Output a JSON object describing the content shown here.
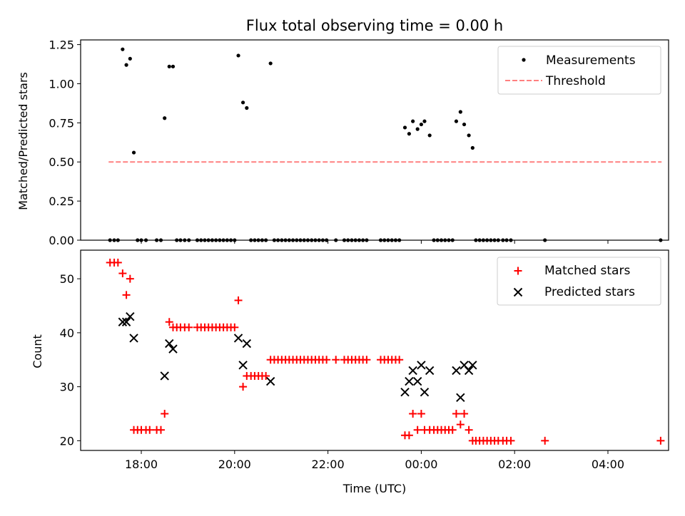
{
  "colors": {
    "matched": "#ff0000",
    "predicted": "#000000",
    "threshold": "#ff8080",
    "measurement": "#000000"
  },
  "chart_data": [
    {
      "type": "scatter",
      "title": "Flux total observing time = 0.00 h",
      "xlabel": "",
      "ylabel": "Matched/Predicted stars",
      "xlim": [
        16.7,
        29.3
      ],
      "ylim": [
        0,
        1.28
      ],
      "x_ticks": [
        18,
        20,
        22,
        24,
        26,
        28
      ],
      "x_tick_labels": [
        "18:00",
        "20:00",
        "22:00",
        "00:00",
        "02:00",
        "04:00"
      ],
      "y_ticks": [
        0,
        0.25,
        0.5,
        0.75,
        1.0,
        1.25
      ],
      "y_tick_labels": [
        "0.00",
        "0.25",
        "0.50",
        "0.75",
        "1.00",
        "1.25"
      ],
      "legend_position": "top-right",
      "series": [
        {
          "name": "Measurements",
          "marker": "dot",
          "points": [
            [
              17.6,
              1.22
            ],
            [
              17.68,
              1.12
            ],
            [
              17.76,
              1.16
            ],
            [
              17.84,
              0.56
            ],
            [
              18.5,
              0.78
            ],
            [
              18.6,
              1.11
            ],
            [
              18.68,
              1.11
            ],
            [
              20.08,
              1.18
            ],
            [
              20.18,
              0.88
            ],
            [
              20.26,
              0.845
            ],
            [
              20.77,
              1.13
            ],
            [
              23.65,
              0.72
            ],
            [
              23.74,
              0.68
            ],
            [
              23.82,
              0.76
            ],
            [
              23.92,
              0.71
            ],
            [
              24.0,
              0.74
            ],
            [
              24.07,
              0.76
            ],
            [
              24.18,
              0.67
            ],
            [
              24.75,
              0.76
            ],
            [
              24.84,
              0.82
            ],
            [
              24.92,
              0.74
            ],
            [
              25.02,
              0.67
            ],
            [
              25.1,
              0.59
            ],
            [
              17.33,
              0
            ],
            [
              17.42,
              0
            ],
            [
              17.5,
              0
            ],
            [
              17.92,
              0
            ],
            [
              18.0,
              0
            ],
            [
              18.1,
              0
            ],
            [
              18.33,
              0
            ],
            [
              18.42,
              0
            ],
            [
              18.76,
              0
            ],
            [
              18.84,
              0
            ],
            [
              18.93,
              0
            ],
            [
              19.02,
              0
            ],
            [
              19.2,
              0
            ],
            [
              19.28,
              0
            ],
            [
              19.36,
              0
            ],
            [
              19.44,
              0
            ],
            [
              19.52,
              0
            ],
            [
              19.6,
              0
            ],
            [
              19.68,
              0
            ],
            [
              19.76,
              0
            ],
            [
              19.84,
              0
            ],
            [
              19.92,
              0
            ],
            [
              20.0,
              0
            ],
            [
              20.35,
              0
            ],
            [
              20.43,
              0
            ],
            [
              20.51,
              0
            ],
            [
              20.59,
              0
            ],
            [
              20.67,
              0
            ],
            [
              20.85,
              0
            ],
            [
              20.93,
              0
            ],
            [
              21.01,
              0
            ],
            [
              21.09,
              0
            ],
            [
              21.17,
              0
            ],
            [
              21.25,
              0
            ],
            [
              21.33,
              0
            ],
            [
              21.41,
              0
            ],
            [
              21.49,
              0
            ],
            [
              21.57,
              0
            ],
            [
              21.65,
              0
            ],
            [
              21.73,
              0
            ],
            [
              21.81,
              0
            ],
            [
              21.89,
              0
            ],
            [
              21.97,
              0
            ],
            [
              22.17,
              0
            ],
            [
              22.35,
              0
            ],
            [
              22.43,
              0
            ],
            [
              22.51,
              0
            ],
            [
              22.59,
              0
            ],
            [
              22.67,
              0
            ],
            [
              22.75,
              0
            ],
            [
              22.83,
              0
            ],
            [
              23.13,
              0
            ],
            [
              23.21,
              0
            ],
            [
              23.29,
              0
            ],
            [
              23.37,
              0
            ],
            [
              23.45,
              0
            ],
            [
              23.53,
              0
            ],
            [
              24.27,
              0
            ],
            [
              24.35,
              0
            ],
            [
              24.43,
              0
            ],
            [
              24.51,
              0
            ],
            [
              24.59,
              0
            ],
            [
              24.67,
              0
            ],
            [
              25.17,
              0
            ],
            [
              25.25,
              0
            ],
            [
              25.33,
              0
            ],
            [
              25.41,
              0
            ],
            [
              25.49,
              0
            ],
            [
              25.57,
              0
            ],
            [
              25.65,
              0
            ],
            [
              25.75,
              0
            ],
            [
              25.83,
              0
            ],
            [
              25.92,
              0
            ],
            [
              26.65,
              0
            ],
            [
              29.13,
              0
            ]
          ]
        },
        {
          "name": "Threshold",
          "marker": "dashed-line",
          "points": [
            [
              17.3,
              0.5
            ],
            [
              29.15,
              0.5
            ]
          ]
        }
      ]
    },
    {
      "type": "scatter",
      "title": "",
      "xlabel": "Time (UTC)",
      "ylabel": "Count",
      "xlim": [
        16.7,
        29.3
      ],
      "ylim": [
        18.2,
        55.3
      ],
      "x_ticks": [
        18,
        20,
        22,
        24,
        26,
        28
      ],
      "x_tick_labels": [
        "18:00",
        "20:00",
        "22:00",
        "00:00",
        "02:00",
        "04:00"
      ],
      "y_ticks": [
        20,
        30,
        40,
        50
      ],
      "y_tick_labels": [
        "20",
        "30",
        "40",
        "50"
      ],
      "legend_position": "top-right",
      "series": [
        {
          "name": "Matched stars",
          "marker": "plus",
          "points": [
            [
              17.33,
              53
            ],
            [
              17.42,
              53
            ],
            [
              17.5,
              53
            ],
            [
              17.6,
              51
            ],
            [
              17.68,
              47
            ],
            [
              17.76,
              50
            ],
            [
              17.84,
              22
            ],
            [
              17.92,
              22
            ],
            [
              18.0,
              22
            ],
            [
              18.1,
              22
            ],
            [
              18.18,
              22
            ],
            [
              18.33,
              22
            ],
            [
              18.42,
              22
            ],
            [
              18.5,
              25
            ],
            [
              18.6,
              42
            ],
            [
              18.68,
              41
            ],
            [
              18.76,
              41
            ],
            [
              18.84,
              41
            ],
            [
              18.93,
              41
            ],
            [
              19.02,
              41
            ],
            [
              19.2,
              41
            ],
            [
              19.28,
              41
            ],
            [
              19.36,
              41
            ],
            [
              19.44,
              41
            ],
            [
              19.52,
              41
            ],
            [
              19.6,
              41
            ],
            [
              19.68,
              41
            ],
            [
              19.76,
              41
            ],
            [
              19.84,
              41
            ],
            [
              19.92,
              41
            ],
            [
              20.0,
              41
            ],
            [
              20.08,
              46
            ],
            [
              20.18,
              30
            ],
            [
              20.26,
              32
            ],
            [
              20.35,
              32
            ],
            [
              20.43,
              32
            ],
            [
              20.51,
              32
            ],
            [
              20.59,
              32
            ],
            [
              20.67,
              32
            ],
            [
              20.77,
              35
            ],
            [
              20.85,
              35
            ],
            [
              20.93,
              35
            ],
            [
              21.01,
              35
            ],
            [
              21.09,
              35
            ],
            [
              21.17,
              35
            ],
            [
              21.25,
              35
            ],
            [
              21.33,
              35
            ],
            [
              21.41,
              35
            ],
            [
              21.49,
              35
            ],
            [
              21.57,
              35
            ],
            [
              21.65,
              35
            ],
            [
              21.73,
              35
            ],
            [
              21.81,
              35
            ],
            [
              21.89,
              35
            ],
            [
              21.97,
              35
            ],
            [
              22.17,
              35
            ],
            [
              22.35,
              35
            ],
            [
              22.43,
              35
            ],
            [
              22.51,
              35
            ],
            [
              22.59,
              35
            ],
            [
              22.67,
              35
            ],
            [
              22.75,
              35
            ],
            [
              22.83,
              35
            ],
            [
              23.13,
              35
            ],
            [
              23.21,
              35
            ],
            [
              23.29,
              35
            ],
            [
              23.37,
              35
            ],
            [
              23.45,
              35
            ],
            [
              23.53,
              35
            ],
            [
              23.65,
              21
            ],
            [
              23.74,
              21
            ],
            [
              23.82,
              25
            ],
            [
              23.92,
              22
            ],
            [
              24.0,
              25
            ],
            [
              24.07,
              22
            ],
            [
              24.18,
              22
            ],
            [
              24.27,
              22
            ],
            [
              24.35,
              22
            ],
            [
              24.43,
              22
            ],
            [
              24.51,
              22
            ],
            [
              24.59,
              22
            ],
            [
              24.67,
              22
            ],
            [
              24.75,
              25
            ],
            [
              24.84,
              23
            ],
            [
              24.92,
              25
            ],
            [
              25.02,
              22
            ],
            [
              25.1,
              20
            ],
            [
              25.17,
              20
            ],
            [
              25.25,
              20
            ],
            [
              25.33,
              20
            ],
            [
              25.41,
              20
            ],
            [
              25.49,
              20
            ],
            [
              25.57,
              20
            ],
            [
              25.65,
              20
            ],
            [
              25.75,
              20
            ],
            [
              25.83,
              20
            ],
            [
              25.92,
              20
            ],
            [
              26.65,
              20
            ],
            [
              29.13,
              20
            ]
          ]
        },
        {
          "name": "Predicted stars",
          "marker": "x",
          "points": [
            [
              17.6,
              42
            ],
            [
              17.68,
              42
            ],
            [
              17.76,
              43
            ],
            [
              17.84,
              39
            ],
            [
              18.5,
              32
            ],
            [
              18.6,
              38
            ],
            [
              18.68,
              37
            ],
            [
              20.08,
              39
            ],
            [
              20.18,
              34
            ],
            [
              20.26,
              38
            ],
            [
              20.77,
              31
            ],
            [
              23.65,
              29
            ],
            [
              23.74,
              31
            ],
            [
              23.82,
              33
            ],
            [
              23.92,
              31
            ],
            [
              24.0,
              34
            ],
            [
              24.07,
              29
            ],
            [
              24.18,
              33
            ],
            [
              24.75,
              33
            ],
            [
              24.84,
              28
            ],
            [
              24.92,
              34
            ],
            [
              25.02,
              33
            ],
            [
              25.1,
              34
            ]
          ]
        }
      ]
    }
  ]
}
